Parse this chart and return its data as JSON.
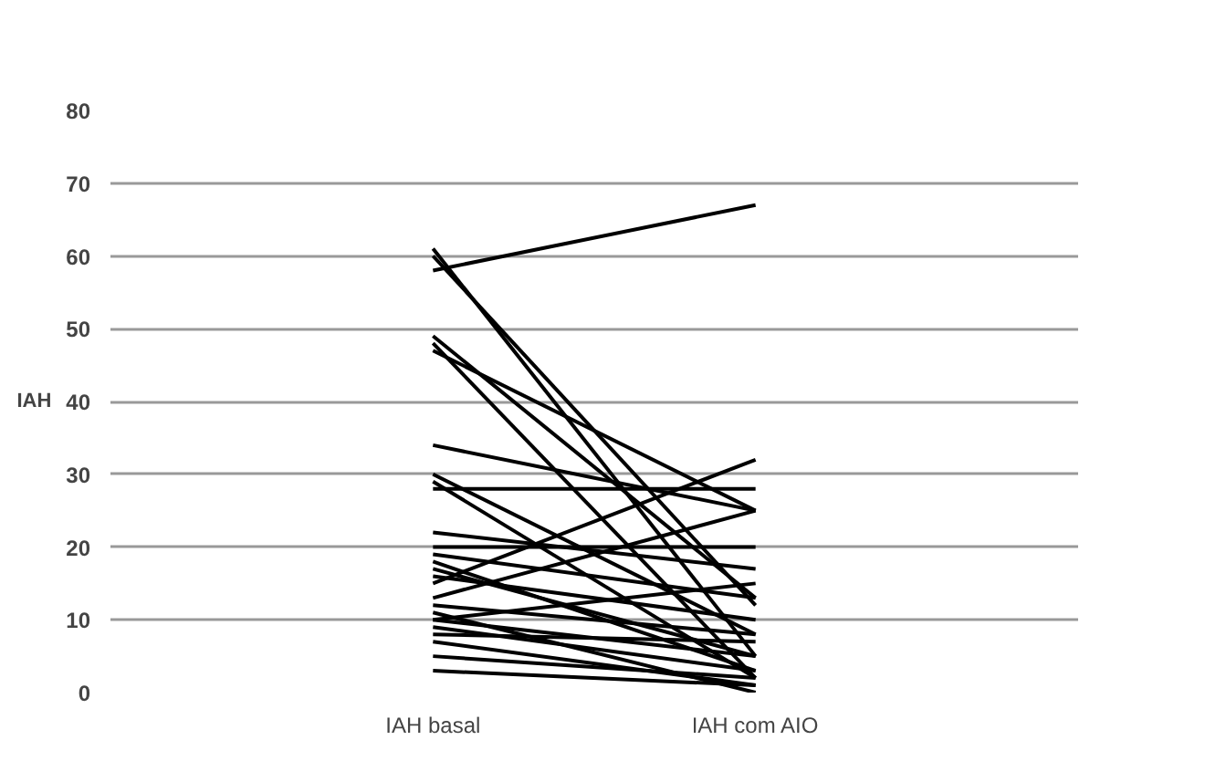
{
  "chart_data": {
    "type": "line",
    "ylabel": "IAH",
    "categories": [
      "IAH basal",
      "IAH com AIO"
    ],
    "ylim": [
      0,
      80
    ],
    "yticks": [
      0,
      10,
      20,
      30,
      40,
      50,
      60,
      70,
      80
    ],
    "grid": "y",
    "marker": "none",
    "line_style": "solid",
    "series": [
      {
        "color": "#000000",
        "values": [
          58,
          67
        ]
      },
      {
        "color": "#000000",
        "values": [
          61,
          5
        ]
      },
      {
        "color": "#000000",
        "values": [
          60,
          12
        ]
      },
      {
        "color": "#000000",
        "values": [
          49,
          13
        ]
      },
      {
        "color": "#000000",
        "values": [
          47,
          25
        ]
      },
      {
        "color": "#000000",
        "values": [
          48,
          2
        ]
      },
      {
        "color": "#000000",
        "values": [
          34,
          25
        ]
      },
      {
        "color": "#000000",
        "values": [
          30,
          8
        ]
      },
      {
        "color": "#000000",
        "values": [
          29,
          2
        ]
      },
      {
        "color": "#000000",
        "values": [
          28,
          28
        ]
      },
      {
        "color": "#000000",
        "values": [
          22,
          17
        ]
      },
      {
        "color": "#000000",
        "values": [
          20,
          20
        ]
      },
      {
        "color": "#000000",
        "values": [
          19,
          13
        ]
      },
      {
        "color": "#000000",
        "values": [
          18,
          3
        ]
      },
      {
        "color": "#000000",
        "values": [
          17,
          5
        ]
      },
      {
        "color": "#000000",
        "values": [
          16,
          10
        ]
      },
      {
        "color": "#000000",
        "values": [
          15,
          32
        ]
      },
      {
        "color": "#000000",
        "values": [
          13,
          25
        ]
      },
      {
        "color": "#000000",
        "values": [
          12,
          8
        ]
      },
      {
        "color": "#000000",
        "values": [
          11,
          0
        ]
      },
      {
        "color": "#000000",
        "values": [
          10,
          15
        ]
      },
      {
        "color": "#000000",
        "values": [
          10,
          5
        ]
      },
      {
        "color": "#000000",
        "values": [
          9,
          3
        ]
      },
      {
        "color": "#000000",
        "values": [
          8,
          7
        ]
      },
      {
        "color": "#000000",
        "values": [
          7,
          1
        ]
      },
      {
        "color": "#000000",
        "values": [
          5,
          2
        ]
      },
      {
        "color": "#000000",
        "values": [
          3,
          1
        ]
      }
    ]
  }
}
